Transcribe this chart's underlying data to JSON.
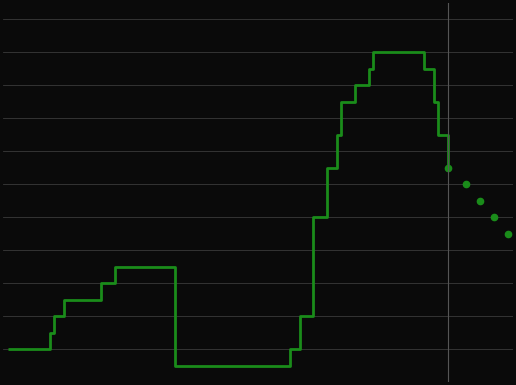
{
  "background_color": "#0a0a0a",
  "line_color": "#1a8c1a",
  "forecast_color": "#1a8c1a",
  "grid_color": "#3a3a3a",
  "ylim": [
    0.0,
    5.75
  ],
  "yticks": [
    0.5,
    1.0,
    1.5,
    2.0,
    2.5,
    3.0,
    3.5,
    4.0,
    4.5,
    5.0,
    5.5
  ],
  "history": {
    "dates": [
      2017.0,
      2017.58,
      2017.75,
      2017.83,
      2018.0,
      2018.25,
      2018.67,
      2018.92,
      2019.0,
      2019.75,
      2020.0,
      2020.25,
      2021.75,
      2022.08,
      2022.25,
      2022.5,
      2022.75,
      2022.92,
      2023.0,
      2023.25,
      2023.5,
      2023.58,
      2023.75,
      2024.0,
      2024.25,
      2024.5,
      2024.67,
      2024.75,
      2024.917
    ],
    "rates": [
      0.5,
      0.5,
      0.75,
      1.0,
      1.25,
      1.25,
      1.5,
      1.75,
      1.75,
      1.75,
      0.25,
      0.25,
      0.25,
      0.5,
      1.0,
      2.5,
      3.25,
      3.75,
      4.25,
      4.5,
      4.75,
      5.0,
      5.0,
      5.0,
      5.0,
      4.75,
      4.25,
      3.75,
      3.25
    ]
  },
  "forecast": {
    "dates": [
      2024.917,
      2025.25,
      2025.5,
      2025.75,
      2026.0
    ],
    "rates": [
      3.25,
      3.0,
      2.75,
      2.5,
      2.25
    ]
  },
  "vline_x": 2024.917,
  "vline_color": "#555555",
  "xlim": [
    2016.9,
    2026.1
  ],
  "figsize": [
    5.16,
    3.85
  ],
  "dpi": 100
}
